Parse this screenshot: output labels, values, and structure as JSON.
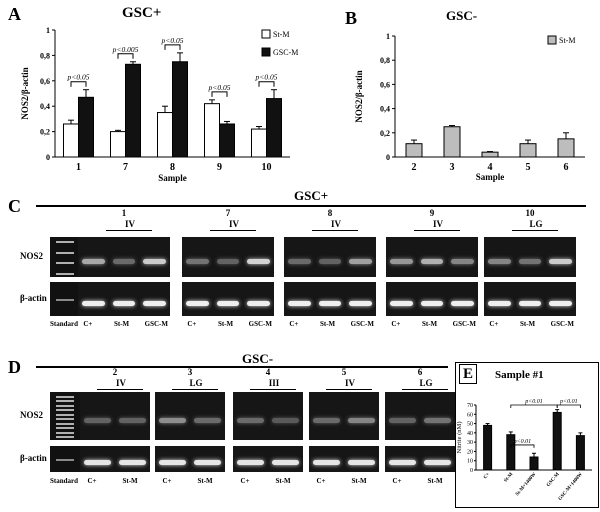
{
  "panels": {
    "A": "A",
    "B": "B",
    "C": "C",
    "D": "D",
    "E": "E"
  },
  "chartA": {
    "title": "GSC+",
    "ylabel": "NOS2/β-actin",
    "xlabel": "Sample",
    "legend": [
      "St-M",
      "GSC-M"
    ],
    "yticks": [
      "0",
      "0,2",
      "0,4",
      "0,6",
      "0,8",
      "1"
    ],
    "pvalues": [
      "p<0.05",
      "p<0.005",
      "p<0.05",
      "p<0.05",
      "p<0.05"
    ]
  },
  "chartB": {
    "title": "GSC-",
    "ylabel": "NOS2/β-actin",
    "xlabel": "Sample",
    "legend": [
      "St-M"
    ],
    "yticks": [
      "0",
      "0,2",
      "0,4",
      "0,6",
      "0,8",
      "1"
    ]
  },
  "gelC": {
    "title": "GSC+",
    "samples": [
      {
        "num": "1",
        "grade": "IV"
      },
      {
        "num": "7",
        "grade": "IV"
      },
      {
        "num": "8",
        "grade": "IV"
      },
      {
        "num": "9",
        "grade": "IV"
      },
      {
        "num": "10",
        "grade": "LG"
      }
    ],
    "rows": [
      "NOS2",
      "β-actin"
    ],
    "lanes": [
      "Standard",
      "C+",
      "St-M",
      "GSC-M"
    ]
  },
  "gelD": {
    "title": "GSC-",
    "samples": [
      {
        "num": "2",
        "grade": "IV"
      },
      {
        "num": "3",
        "grade": "LG"
      },
      {
        "num": "4",
        "grade": "III"
      },
      {
        "num": "5",
        "grade": "IV"
      },
      {
        "num": "6",
        "grade": "LG"
      }
    ],
    "rows": [
      "NOS2",
      "β-actin"
    ],
    "lanes": [
      "Standard",
      "C+",
      "St-M"
    ]
  },
  "chartE": {
    "title": "Sample #1",
    "ylabel": "Nitrite (nM)",
    "yticks": [
      "0",
      "10",
      "20",
      "30",
      "40",
      "50",
      "60",
      "70"
    ],
    "pvalues": [
      "p<0.01",
      "p<0.01",
      "p<0.01"
    ]
  },
  "chart_data": [
    {
      "type": "bar",
      "title": "GSC+",
      "xlabel": "Sample",
      "ylabel": "NOS2/β-actin",
      "ylim": [
        0,
        1
      ],
      "categories": [
        "1",
        "7",
        "8",
        "9",
        "10"
      ],
      "series": [
        {
          "name": "St-M",
          "values": [
            0.26,
            0.2,
            0.35,
            0.42,
            0.22
          ],
          "errors": [
            0.03,
            0.01,
            0.05,
            0.03,
            0.02
          ]
        },
        {
          "name": "GSC-M",
          "values": [
            0.47,
            0.73,
            0.75,
            0.26,
            0.46
          ],
          "errors": [
            0.06,
            0.02,
            0.07,
            0.02,
            0.07
          ]
        }
      ],
      "annotations": [
        "p<0.05",
        "p<0.005",
        "p<0.05",
        "p<0.05",
        "p<0.05"
      ],
      "legend": "top-right",
      "grid": false
    },
    {
      "type": "bar",
      "title": "GSC-",
      "xlabel": "Sample",
      "ylabel": "NOS2/β-actin",
      "ylim": [
        0,
        1
      ],
      "categories": [
        "2",
        "3",
        "4",
        "5",
        "6"
      ],
      "series": [
        {
          "name": "St-M",
          "values": [
            0.11,
            0.25,
            0.04,
            0.11,
            0.15
          ],
          "errors": [
            0.03,
            0.01,
            0.005,
            0.03,
            0.05
          ]
        }
      ],
      "legend": "top-right",
      "grid": false
    },
    {
      "type": "bar",
      "title": "Sample #1",
      "ylabel": "Nitrite (nM)",
      "ylim": [
        0,
        70
      ],
      "categories": [
        "C+",
        "St-M",
        "St-M+1400W",
        "GSC-M",
        "GSC-M+1400W"
      ],
      "series": [
        {
          "values": [
            48,
            38,
            14,
            62,
            37
          ],
          "errors": [
            2,
            3,
            4,
            3,
            3
          ]
        }
      ],
      "annotations": [
        "p<0.01",
        "p<0.01",
        "p<0.01"
      ],
      "grid": false
    }
  ]
}
